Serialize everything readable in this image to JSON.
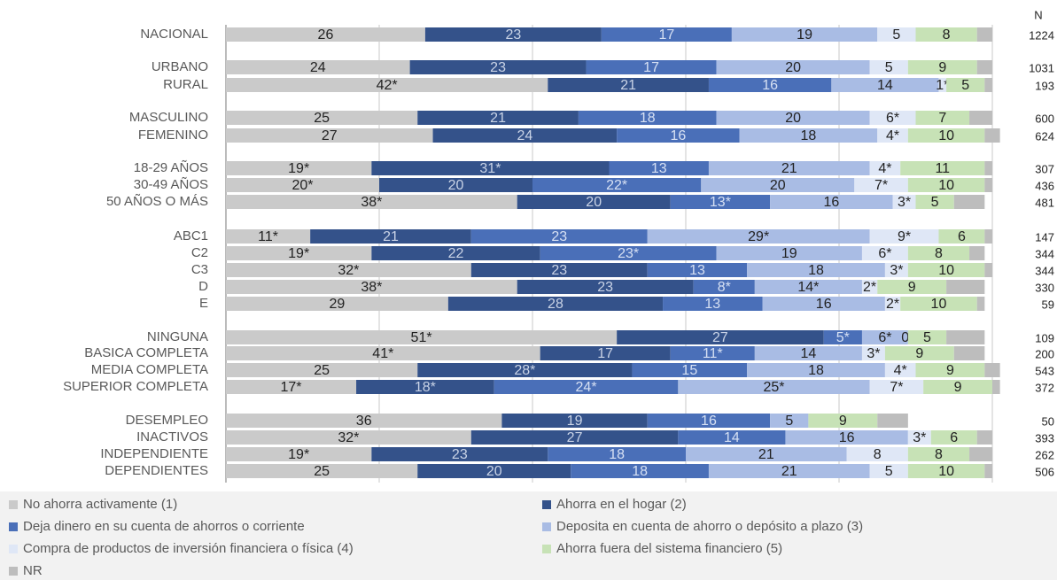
{
  "chart_data": {
    "type": "stacked-bar",
    "orientation": "horizontal",
    "xlim": [
      0,
      100
    ],
    "xticks": [
      0,
      20,
      40,
      60,
      80,
      100
    ],
    "grid": true,
    "n_header": "N",
    "categories": [
      "NACIONAL",
      "URBANO",
      "RURAL",
      "MASCULINO",
      "FEMENINO",
      "18-29 AÑOS",
      "30-49 AÑOS",
      "50 AÑOS O MÁS",
      "ABC1",
      "C2",
      "C3",
      "D",
      "E",
      "NINGUNA",
      "BASICA COMPLETA",
      "MEDIA COMPLETA",
      "SUPERIOR COMPLETA",
      "DESEMPLEO",
      "INACTIVOS",
      "INDEPENDIENTE",
      "DEPENDIENTES"
    ],
    "n": [
      "1224",
      "1031",
      "193",
      "600",
      "624",
      "307",
      "436",
      "481",
      "147",
      "344",
      "344",
      "330",
      "59",
      "109",
      "200",
      "543",
      "372",
      "50",
      "393",
      "262",
      "506"
    ],
    "series": [
      {
        "name": "No ahorra activamente (1)",
        "color": "#cacaca",
        "text_color": "#222222",
        "values": [
          26,
          24,
          42,
          25,
          27,
          19,
          20,
          38,
          11,
          19,
          32,
          38,
          29,
          51,
          41,
          25,
          17,
          36,
          32,
          19,
          25
        ],
        "value_labels": [
          "26",
          "24",
          "42*",
          "25",
          "27",
          "19*",
          "20*",
          "38*",
          "11*",
          "19*",
          "32*",
          "38*",
          "29",
          "51*",
          "41*",
          "25",
          "17*",
          "36",
          "32*",
          "19*",
          "25"
        ]
      },
      {
        "name": "Ahorra en el hogar (2)",
        "color": "#34528a",
        "text_color": "#c9d3e6",
        "values": [
          23,
          23,
          21,
          21,
          24,
          31,
          20,
          20,
          21,
          22,
          23,
          23,
          28,
          27,
          17,
          28,
          18,
          19,
          27,
          23,
          20
        ],
        "value_labels": [
          "23",
          "23",
          "21",
          "21",
          "24",
          "31*",
          "20",
          "20",
          "21",
          "22",
          "23",
          "23",
          "28",
          "27",
          "17",
          "28*",
          "18*",
          "19",
          "27",
          "23",
          "20"
        ]
      },
      {
        "name": "Deja dinero en su cuenta de ahorros o corriente",
        "color": "#4a6fb8",
        "text_color": "#d6e0f3",
        "values": [
          17,
          17,
          16,
          18,
          16,
          13,
          22,
          13,
          23,
          23,
          13,
          8,
          13,
          5,
          11,
          15,
          24,
          16,
          14,
          18,
          18
        ],
        "value_labels": [
          "17",
          "17",
          "16",
          "18",
          "16",
          "13",
          "22*",
          "13*",
          "23",
          "23*",
          "13",
          "8*",
          "13",
          "5*",
          "11*",
          "15",
          "24*",
          "16",
          "14",
          "18",
          "18"
        ]
      },
      {
        "name": "Deposita en cuenta de ahorro o depósito a plazo (3)",
        "color": "#a9bce4",
        "text_color": "#222222",
        "values": [
          19,
          20,
          14,
          20,
          18,
          21,
          20,
          16,
          29,
          19,
          18,
          14,
          16,
          6,
          14,
          18,
          25,
          5,
          16,
          21,
          21
        ],
        "value_labels": [
          "19",
          "20",
          "14",
          "20",
          "18",
          "21",
          "20",
          "16",
          "29*",
          "19",
          "18",
          "14*",
          "16",
          "6*",
          "14",
          "18",
          "25*",
          "5",
          "16",
          "21",
          "21"
        ]
      },
      {
        "name": "Compra de productos de inversión financiera o física (4)",
        "color": "#dfe7f6",
        "text_color": "#222222",
        "values": [
          5,
          5,
          1,
          6,
          4,
          4,
          7,
          3,
          9,
          6,
          3,
          2,
          2,
          0,
          3,
          4,
          7,
          0,
          3,
          8,
          5
        ],
        "value_labels": [
          "5",
          "5",
          "1*",
          "6*",
          "4*",
          "4*",
          "7*",
          "3*",
          "9*",
          "6*",
          "3*",
          "2*",
          "2*",
          "0*",
          "3*",
          "4*",
          "7*",
          null,
          "3*",
          "8",
          "5"
        ]
      },
      {
        "name": "Ahorra fuera del sistema financiero (5)",
        "color": "#c7e2b6",
        "text_color": "#222222",
        "values": [
          8,
          9,
          5,
          7,
          10,
          11,
          10,
          5,
          6,
          8,
          10,
          9,
          10,
          5,
          9,
          9,
          9,
          9,
          6,
          8,
          10
        ],
        "value_labels": [
          "8",
          "9",
          "5",
          "7",
          "10",
          "11",
          "10",
          "5",
          "6",
          "8",
          "10",
          "9",
          "10",
          "5",
          "9",
          "9",
          "9",
          "9",
          "6",
          "8",
          "10"
        ]
      },
      {
        "name": "NR",
        "color": "#bdbdbd",
        "text_color": "#222222",
        "values": [
          2,
          2,
          1,
          3,
          2,
          1,
          1,
          4,
          1,
          2,
          1,
          5,
          1,
          5,
          4,
          2,
          1,
          4,
          2,
          3,
          1
        ]
      }
    ]
  }
}
